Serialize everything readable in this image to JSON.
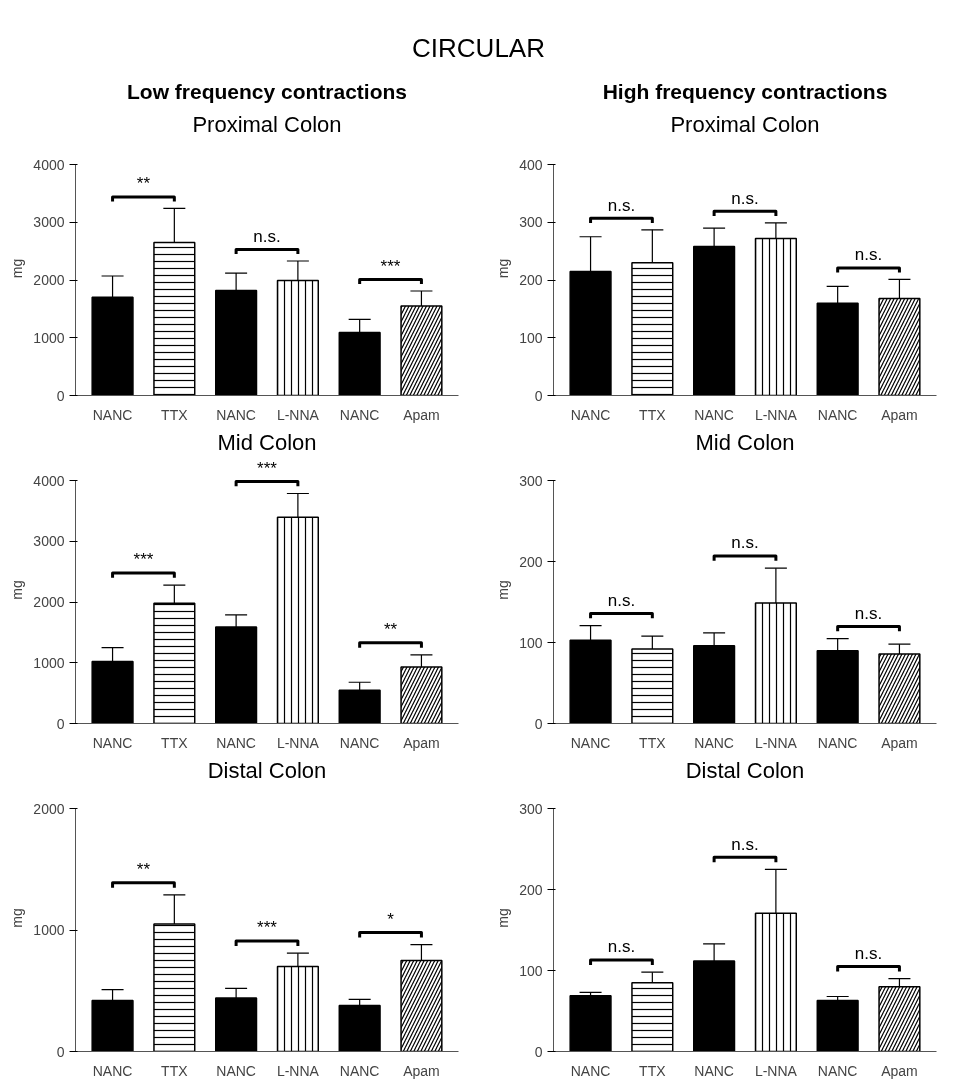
{
  "chart_data": [
    {
      "type": "other",
      "title": "CIRCULAR"
    },
    {
      "type": "bar",
      "title": "Proximal Colon",
      "subtitle": "Low frequency contractions",
      "ylabel": "mg",
      "categories": [
        "NANC",
        "TTX",
        "NANC",
        "L-NNA",
        "NANC",
        "Apam"
      ],
      "values": [
        1700,
        2650,
        1820,
        1990,
        1090,
        1550
      ],
      "errors": [
        [
          1700,
          2070
        ],
        [
          2650,
          3240
        ],
        [
          1820,
          2120
        ],
        [
          1990,
          2330
        ],
        [
          1090,
          1320
        ],
        [
          1550,
          1810
        ]
      ],
      "colors": [
        "#000000",
        "#ffffff",
        "#000000",
        "#ffffff",
        "#000000",
        "#ffffff"
      ],
      "ylim": [
        0,
        4000
      ],
      "yticks": [
        0,
        1000,
        2000,
        3000,
        4000
      ],
      "annotations": [
        "**",
        "n.s.",
        "***"
      ]
    },
    {
      "type": "bar",
      "title": "Proximal Colon",
      "subtitle": "High frequency contractions",
      "ylabel": "mg",
      "categories": [
        "NANC",
        "TTX",
        "NANC",
        "L-NNA",
        "NANC",
        "Apam"
      ],
      "values": [
        215,
        230,
        258,
        272,
        160,
        168
      ],
      "errors": [
        [
          215,
          275
        ],
        [
          230,
          287
        ],
        [
          258,
          290
        ],
        [
          272,
          299
        ],
        [
          160,
          189
        ],
        [
          168,
          201
        ]
      ],
      "colors": [
        "#000000",
        "#ffffff",
        "#000000",
        "#ffffff",
        "#000000",
        "#ffffff"
      ],
      "ylim": [
        0,
        400
      ],
      "yticks": [
        0,
        100,
        200,
        300,
        400
      ],
      "annotations": [
        "n.s.",
        "n.s.",
        "n.s."
      ]
    },
    {
      "type": "bar",
      "title": "Mid Colon",
      "ylabel": "mg",
      "categories": [
        "NANC",
        "TTX",
        "NANC",
        "L-NNA",
        "NANC",
        "Apam"
      ],
      "values": [
        1020,
        1980,
        1590,
        3400,
        550,
        930
      ],
      "errors": [
        [
          1020,
          1250
        ],
        [
          1980,
          2280
        ],
        [
          1590,
          1790
        ],
        [
          3400,
          3790
        ],
        [
          550,
          680
        ],
        [
          930,
          1130
        ]
      ],
      "colors": [
        "#000000",
        "#ffffff",
        "#000000",
        "#ffffff",
        "#000000",
        "#ffffff"
      ],
      "ylim": [
        0,
        4000
      ],
      "yticks": [
        0,
        1000,
        2000,
        3000,
        4000
      ],
      "annotations": [
        "***",
        "***",
        "**"
      ]
    },
    {
      "type": "bar",
      "title": "Mid Colon",
      "ylabel": "mg",
      "categories": [
        "NANC",
        "TTX",
        "NANC",
        "L-NNA",
        "NANC",
        "Apam"
      ],
      "values": [
        103,
        92,
        96,
        149,
        90,
        86
      ],
      "errors": [
        [
          103,
          121
        ],
        [
          92,
          108
        ],
        [
          96,
          112
        ],
        [
          149,
          192
        ],
        [
          90,
          105
        ],
        [
          86,
          98
        ]
      ],
      "colors": [
        "#000000",
        "#ffffff",
        "#000000",
        "#ffffff",
        "#000000",
        "#ffffff"
      ],
      "ylim": [
        0,
        300
      ],
      "yticks": [
        0,
        100,
        200,
        300
      ],
      "annotations": [
        "n.s.",
        "n.s.",
        "n.s."
      ]
    },
    {
      "type": "bar",
      "title": "Distal Colon",
      "ylabel": "mg",
      "categories": [
        "NANC",
        "TTX",
        "NANC",
        "L-NNA",
        "NANC",
        "Apam"
      ],
      "values": [
        420,
        1050,
        440,
        700,
        380,
        750
      ],
      "errors": [
        [
          420,
          510
        ],
        [
          1050,
          1290
        ],
        [
          440,
          520
        ],
        [
          700,
          810
        ],
        [
          380,
          430
        ],
        [
          750,
          880
        ]
      ],
      "colors": [
        "#000000",
        "#ffffff",
        "#000000",
        "#ffffff",
        "#000000",
        "#ffffff"
      ],
      "ylim": [
        0,
        2000
      ],
      "yticks": [
        0,
        1000,
        2000
      ],
      "annotations": [
        "**",
        "***",
        "*"
      ]
    },
    {
      "type": "bar",
      "title": "Distal Colon",
      "ylabel": "mg",
      "categories": [
        "NANC",
        "TTX",
        "NANC",
        "L-NNA",
        "NANC",
        "Apam"
      ],
      "values": [
        69,
        85,
        112,
        171,
        63,
        80
      ],
      "errors": [
        [
          69,
          73
        ],
        [
          85,
          98
        ],
        [
          112,
          133
        ],
        [
          171,
          225
        ],
        [
          63,
          68
        ],
        [
          80,
          90
        ]
      ],
      "colors": [
        "#000000",
        "#ffffff",
        "#000000",
        "#ffffff",
        "#000000",
        "#ffffff"
      ],
      "ylim": [
        0,
        300
      ],
      "yticks": [
        0,
        100,
        200,
        300
      ],
      "annotations": [
        "n.s.",
        "n.s.",
        "n.s."
      ]
    }
  ]
}
